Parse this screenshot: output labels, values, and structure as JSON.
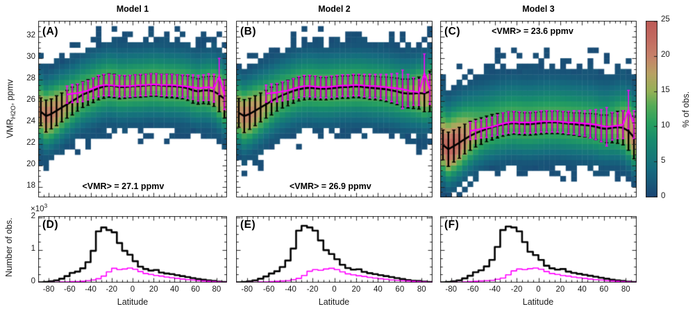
{
  "colors": {
    "background": "#ffffff",
    "axis": "#222222",
    "black_series": "#000000",
    "magenta_series": "#ff00ff",
    "colormap_stops": [
      [
        0.0,
        "#1a4473"
      ],
      [
        0.16,
        "#156c7f"
      ],
      [
        0.32,
        "#178a6e"
      ],
      [
        0.42,
        "#27a05f"
      ],
      [
        0.52,
        "#55ab56"
      ],
      [
        0.6,
        "#94b156"
      ],
      [
        0.7,
        "#b8a263"
      ],
      [
        0.8,
        "#c68169"
      ],
      [
        0.9,
        "#c26a60"
      ],
      [
        1.0,
        "#bd5a56"
      ]
    ]
  },
  "axes": {
    "top": {
      "ylabel": {
        "main": "VMR",
        "sub": "H2O",
        "rest": ", ppmv"
      },
      "yticks": [
        18,
        20,
        22,
        24,
        26,
        28,
        30,
        32
      ],
      "ylim": [
        17,
        33.5
      ],
      "xlim": [
        -90,
        90
      ]
    },
    "bottom": {
      "ylabel": "Number of obs.",
      "xlabel": "Latitude",
      "multiplier_base": "×10",
      "multiplier_exp": "3",
      "yticks": [
        0,
        1,
        2
      ],
      "xticks": [
        -80,
        -60,
        -40,
        -20,
        0,
        20,
        40,
        60,
        80
      ],
      "ylim": [
        0,
        2.05
      ],
      "xlim": [
        -90,
        90
      ]
    },
    "colorbar": {
      "label": "% of obs.",
      "ticks": [
        0,
        5,
        10,
        15,
        20,
        25
      ],
      "lim": [
        0,
        25
      ]
    }
  },
  "chart_data": {
    "x_latitude": [
      -87.5,
      -82.5,
      -77.5,
      -72.5,
      -67.5,
      -62.5,
      -57.5,
      -52.5,
      -47.5,
      -42.5,
      -37.5,
      -32.5,
      -27.5,
      -22.5,
      -17.5,
      -12.5,
      -7.5,
      -2.5,
      2.5,
      7.5,
      12.5,
      17.5,
      22.5,
      27.5,
      32.5,
      37.5,
      42.5,
      47.5,
      52.5,
      57.5,
      62.5,
      67.5,
      72.5,
      77.5,
      82.5,
      87.5
    ],
    "top_panels": [
      {
        "type": "heatmap",
        "panel_label": "(A)",
        "title": "Model 1",
        "annotation": "<VMR> = 27.1 ppmv",
        "annotation_loc": "bottom",
        "ylabel": "VMR_H2O, ppmv",
        "xlim": [
          -90,
          90
        ],
        "ylim": [
          17,
          33.5
        ],
        "colorbar_units": "% of obs.",
        "series": [
          {
            "name": "black-mean",
            "mean": [
              25.0,
              24.6,
              24.8,
              25.1,
              25.4,
              25.7,
              26.0,
              26.3,
              26.6,
              26.8,
              27.0,
              27.2,
              27.35,
              27.45,
              27.4,
              27.3,
              27.3,
              27.35,
              27.4,
              27.4,
              27.45,
              27.5,
              27.5,
              27.45,
              27.4,
              27.4,
              27.35,
              27.3,
              27.2,
              27.0,
              26.9,
              27.0,
              27.0,
              26.9,
              26.6,
              26.2
            ],
            "err": [
              1.3,
              1.5,
              1.4,
              1.4,
              1.35,
              1.3,
              1.3,
              1.25,
              1.2,
              1.2,
              1.15,
              1.1,
              1.1,
              1.1,
              1.1,
              1.1,
              1.05,
              1.05,
              1.05,
              1.05,
              1.05,
              1.05,
              1.05,
              1.05,
              1.1,
              1.1,
              1.1,
              1.1,
              1.15,
              1.2,
              1.2,
              1.25,
              1.3,
              1.4,
              1.6,
              1.8
            ]
          },
          {
            "name": "magenta-mean",
            "mean": [
              null,
              null,
              null,
              null,
              null,
              26.6,
              26.7,
              26.75,
              26.85,
              27.0,
              27.2,
              27.4,
              27.5,
              27.5,
              27.45,
              27.4,
              27.4,
              27.4,
              27.45,
              27.5,
              27.5,
              27.55,
              27.55,
              27.5,
              27.5,
              27.5,
              27.45,
              27.4,
              27.35,
              27.3,
              27.2,
              27.25,
              27.3,
              27.2,
              28.3,
              26.6
            ],
            "err": [
              null,
              null,
              null,
              null,
              null,
              0.8,
              0.85,
              0.85,
              0.9,
              0.9,
              0.95,
              1.0,
              1.0,
              1.0,
              1.0,
              1.0,
              1.0,
              1.0,
              1.0,
              1.0,
              1.0,
              1.0,
              1.0,
              1.0,
              1.0,
              1.0,
              1.0,
              1.05,
              1.1,
              1.15,
              1.2,
              1.2,
              1.25,
              1.3,
              1.7,
              1.4
            ]
          }
        ],
        "heatmap": {
          "sigma_up": 1.9,
          "sigma_dn": 1.75,
          "peak_mid": 14.5,
          "peak_left": 6,
          "peak_right": 5,
          "lat_bin": 5,
          "vmr_bin": 0.5
        }
      },
      {
        "type": "heatmap",
        "panel_label": "(B)",
        "title": "Model 2",
        "annotation": "<VMR> = 26.9 ppmv",
        "annotation_loc": "bottom",
        "ylabel": "VMR_H2O, ppmv",
        "xlim": [
          -90,
          90
        ],
        "ylim": [
          17,
          33.5
        ],
        "colorbar_units": "% of obs.",
        "series": [
          {
            "name": "black-mean",
            "mean": [
              24.9,
              24.6,
              24.8,
              25.1,
              25.4,
              25.7,
              26.0,
              26.3,
              26.55,
              26.75,
              26.95,
              27.1,
              27.2,
              27.25,
              27.2,
              27.15,
              27.15,
              27.2,
              27.25,
              27.3,
              27.3,
              27.35,
              27.35,
              27.3,
              27.25,
              27.2,
              27.15,
              27.1,
              27.0,
              26.9,
              26.75,
              26.7,
              26.7,
              26.75,
              26.7,
              26.9
            ],
            "err": [
              1.35,
              1.55,
              1.45,
              1.4,
              1.35,
              1.3,
              1.3,
              1.25,
              1.2,
              1.2,
              1.15,
              1.1,
              1.1,
              1.1,
              1.1,
              1.05,
              1.05,
              1.05,
              1.05,
              1.05,
              1.05,
              1.05,
              1.05,
              1.05,
              1.1,
              1.1,
              1.1,
              1.15,
              1.2,
              1.25,
              1.3,
              1.35,
              1.4,
              1.5,
              1.7,
              1.9
            ]
          },
          {
            "name": "magenta-mean",
            "mean": [
              null,
              null,
              null,
              null,
              null,
              26.7,
              26.75,
              26.8,
              26.9,
              27.0,
              27.15,
              27.3,
              27.4,
              27.4,
              27.35,
              27.3,
              27.3,
              27.35,
              27.4,
              27.45,
              27.45,
              27.5,
              27.5,
              27.45,
              27.4,
              27.4,
              27.35,
              27.3,
              27.25,
              27.2,
              27.1,
              27.0,
              26.9,
              26.8,
              28.6,
              27.1
            ],
            "err": [
              null,
              null,
              null,
              null,
              null,
              0.8,
              0.85,
              0.85,
              0.9,
              0.9,
              0.95,
              1.0,
              1.0,
              1.0,
              1.0,
              1.0,
              1.0,
              1.0,
              1.0,
              1.0,
              1.0,
              1.0,
              1.0,
              1.05,
              1.1,
              1.1,
              1.15,
              1.2,
              1.3,
              1.4,
              1.8,
              1.5,
              1.3,
              1.2,
              1.8,
              1.4
            ]
          }
        ],
        "heatmap": {
          "sigma_up": 1.9,
          "sigma_dn": 1.8,
          "peak_mid": 14,
          "peak_left": 6,
          "peak_right": 5,
          "lat_bin": 5,
          "vmr_bin": 0.5
        }
      },
      {
        "type": "heatmap",
        "panel_label": "(C)",
        "title": "Model 3",
        "annotation": "<VMR> = 23.6 ppmv",
        "annotation_loc": "top",
        "ylabel": "VMR_H2O, ppmv",
        "xlim": [
          -90,
          90
        ],
        "ylim": [
          17,
          33.5
        ],
        "colorbar_units": "% of obs.",
        "series": [
          {
            "name": "black-mean",
            "mean": [
              21.9,
              21.5,
              21.8,
              22.1,
              22.45,
              22.75,
              23.0,
              23.2,
              23.4,
              23.55,
              23.7,
              23.8,
              23.9,
              23.95,
              23.9,
              23.85,
              23.85,
              23.9,
              23.95,
              24.0,
              24.0,
              24.0,
              23.95,
              23.9,
              23.85,
              23.8,
              23.75,
              23.7,
              23.6,
              23.45,
              23.4,
              23.5,
              23.55,
              23.5,
              23.2,
              22.6
            ],
            "err": [
              1.4,
              1.6,
              1.5,
              1.45,
              1.4,
              1.35,
              1.3,
              1.25,
              1.2,
              1.2,
              1.15,
              1.1,
              1.1,
              1.05,
              1.05,
              1.05,
              1.05,
              1.05,
              1.05,
              1.05,
              1.05,
              1.05,
              1.05,
              1.05,
              1.05,
              1.1,
              1.1,
              1.15,
              1.2,
              1.25,
              1.3,
              1.4,
              1.5,
              1.6,
              1.8,
              2.0
            ]
          },
          {
            "name": "magenta-mean",
            "mean": [
              null,
              null,
              null,
              null,
              null,
              23.2,
              23.3,
              23.4,
              23.5,
              23.6,
              23.75,
              23.9,
              24.0,
              24.05,
              24.0,
              24.0,
              24.0,
              24.05,
              24.1,
              24.1,
              24.1,
              24.1,
              24.05,
              24.0,
              24.0,
              23.95,
              23.9,
              23.85,
              23.8,
              23.7,
              23.6,
              23.65,
              23.7,
              23.8,
              25.2,
              23.8
            ],
            "err": [
              null,
              null,
              null,
              null,
              null,
              0.8,
              0.85,
              0.85,
              0.9,
              0.9,
              0.95,
              1.0,
              1.0,
              1.0,
              1.0,
              1.0,
              1.0,
              1.0,
              1.0,
              1.0,
              1.0,
              1.0,
              1.0,
              1.05,
              1.1,
              1.15,
              1.2,
              1.3,
              1.4,
              1.5,
              1.8,
              1.3,
              1.2,
              1.3,
              1.8,
              1.3
            ]
          }
        ],
        "heatmap": {
          "sigma_up": 2.3,
          "sigma_dn": 1.8,
          "peak_mid": 13.5,
          "peak_left": 10,
          "peak_right": 6,
          "lat_bin": 5,
          "vmr_bin": 0.5
        }
      }
    ],
    "bottom_panels": [
      {
        "type": "step-histogram",
        "panel_label": "(D)",
        "xlabel": "Latitude",
        "ylabel": "Number of obs.",
        "value_scale": "1e3",
        "xlim": [
          -90,
          90
        ],
        "ylim": [
          0,
          2.05
        ],
        "series": [
          {
            "name": "black",
            "values": [
              0.01,
              0.02,
              0.04,
              0.07,
              0.12,
              0.2,
              0.3,
              0.34,
              0.44,
              0.63,
              0.98,
              1.58,
              1.7,
              1.62,
              1.55,
              1.22,
              0.98,
              0.86,
              0.66,
              0.49,
              0.42,
              0.37,
              0.39,
              0.31,
              0.28,
              0.26,
              0.23,
              0.2,
              0.17,
              0.14,
              0.11,
              0.09,
              0.07,
              0.05,
              0.03,
              0.02
            ]
          },
          {
            "name": "magenta",
            "values": [
              0.0,
              0.0,
              0.01,
              0.01,
              0.02,
              0.02,
              0.03,
              0.03,
              0.04,
              0.06,
              0.08,
              0.12,
              0.2,
              0.33,
              0.44,
              0.4,
              0.42,
              0.45,
              0.41,
              0.34,
              0.28,
              0.25,
              0.22,
              0.2,
              0.17,
              0.15,
              0.13,
              0.11,
              0.09,
              0.08,
              0.06,
              0.05,
              0.04,
              0.03,
              0.02,
              0.01
            ]
          }
        ]
      },
      {
        "type": "step-histogram",
        "panel_label": "(E)",
        "xlabel": "Latitude",
        "ylabel": "Number of obs.",
        "value_scale": "1e3",
        "xlim": [
          -90,
          90
        ],
        "ylim": [
          0,
          2.05
        ],
        "series": [
          {
            "name": "black",
            "values": [
              0.01,
              0.02,
              0.04,
              0.07,
              0.12,
              0.19,
              0.28,
              0.35,
              0.48,
              0.68,
              1.05,
              1.6,
              1.75,
              1.7,
              1.6,
              1.3,
              1.0,
              0.88,
              0.72,
              0.55,
              0.45,
              0.4,
              0.41,
              0.33,
              0.29,
              0.26,
              0.23,
              0.2,
              0.17,
              0.14,
              0.11,
              0.08,
              0.06,
              0.05,
              0.03,
              0.02
            ]
          },
          {
            "name": "magenta",
            "values": [
              0.0,
              0.0,
              0.01,
              0.01,
              0.02,
              0.02,
              0.03,
              0.04,
              0.05,
              0.06,
              0.09,
              0.13,
              0.22,
              0.35,
              0.4,
              0.38,
              0.42,
              0.44,
              0.4,
              0.33,
              0.27,
              0.24,
              0.21,
              0.19,
              0.16,
              0.14,
              0.12,
              0.1,
              0.08,
              0.07,
              0.06,
              0.05,
              0.04,
              0.03,
              0.02,
              0.01
            ]
          }
        ]
      },
      {
        "type": "step-histogram",
        "panel_label": "(F)",
        "xlabel": "Latitude",
        "ylabel": "Number of obs.",
        "value_scale": "1e3",
        "xlim": [
          -90,
          90
        ],
        "ylim": [
          0,
          2.05
        ],
        "series": [
          {
            "name": "black",
            "values": [
              0.01,
              0.02,
              0.04,
              0.07,
              0.13,
              0.21,
              0.32,
              0.38,
              0.5,
              0.7,
              1.1,
              1.62,
              1.73,
              1.7,
              1.58,
              1.25,
              0.95,
              0.85,
              0.7,
              0.52,
              0.44,
              0.4,
              0.42,
              0.34,
              0.3,
              0.27,
              0.24,
              0.21,
              0.18,
              0.15,
              0.12,
              0.09,
              0.07,
              0.05,
              0.03,
              0.02
            ]
          },
          {
            "name": "magenta",
            "values": [
              0.0,
              0.0,
              0.01,
              0.01,
              0.02,
              0.03,
              0.04,
              0.05,
              0.06,
              0.07,
              0.1,
              0.14,
              0.24,
              0.36,
              0.42,
              0.4,
              0.43,
              0.45,
              0.41,
              0.34,
              0.28,
              0.25,
              0.22,
              0.2,
              0.17,
              0.15,
              0.13,
              0.11,
              0.09,
              0.08,
              0.06,
              0.05,
              0.04,
              0.03,
              0.02,
              0.01
            ]
          }
        ]
      }
    ]
  }
}
